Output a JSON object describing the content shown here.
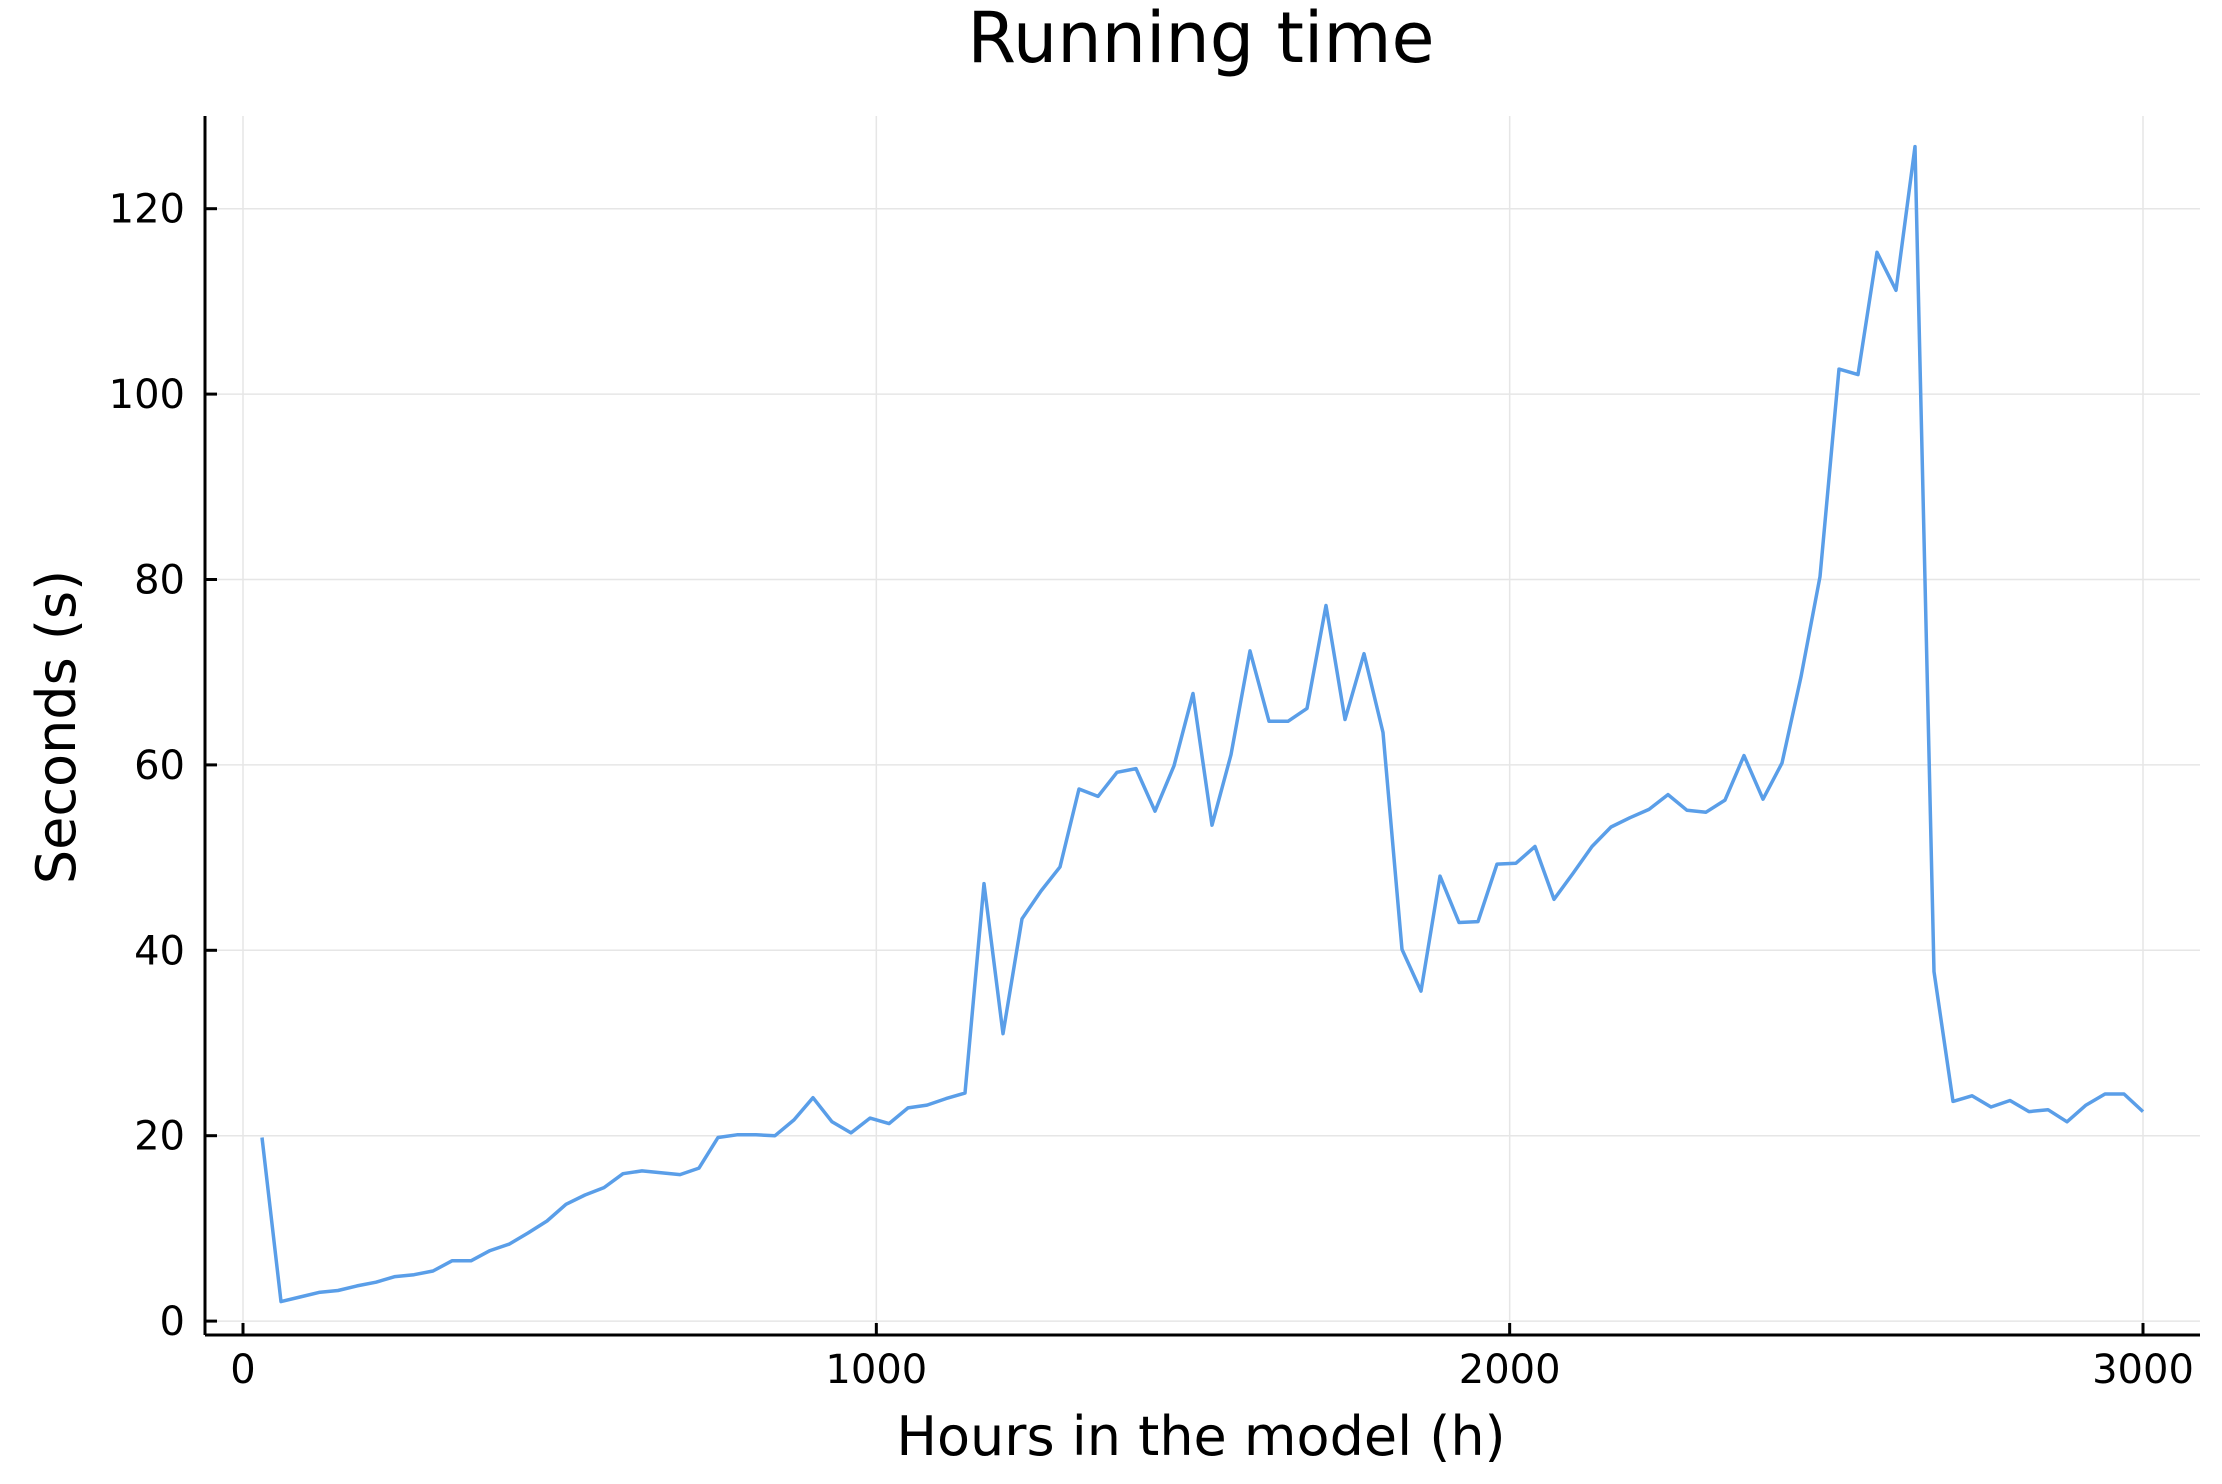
{
  "chart_data": {
    "type": "line",
    "title": "Running time",
    "xlabel": "Hours in the model (h)",
    "ylabel": "Seconds (s)",
    "xlim": [
      -60,
      3090
    ],
    "ylim": [
      -1.5,
      130
    ],
    "xticks": [
      0,
      1000,
      2000,
      3000
    ],
    "yticks": [
      0,
      20,
      40,
      60,
      80,
      100,
      120
    ],
    "grid": true,
    "legend": "none",
    "series": [
      {
        "color": "#5a9ee8",
        "x": [
          30,
          60,
          90,
          120,
          150,
          180,
          210,
          240,
          270,
          300,
          330,
          360,
          390,
          420,
          450,
          480,
          510,
          540,
          570,
          600,
          630,
          660,
          690,
          720,
          750,
          780,
          810,
          840,
          870,
          900,
          930,
          960,
          990,
          1020,
          1050,
          1080,
          1110,
          1140,
          1170,
          1200,
          1230,
          1260,
          1290,
          1320,
          1350,
          1380,
          1410,
          1440,
          1470,
          1500,
          1530,
          1560,
          1590,
          1620,
          1650,
          1680,
          1710,
          1740,
          1770,
          1800,
          1830,
          1860,
          1890,
          1920,
          1950,
          1980,
          2010,
          2040,
          2070,
          2100,
          2130,
          2160,
          2190,
          2220,
          2250,
          2280,
          2310,
          2340,
          2370,
          2400,
          2430,
          2460,
          2490,
          2520,
          2550,
          2580,
          2610,
          2640,
          2670,
          2700,
          2730,
          2760,
          2790,
          2820,
          2850,
          2880,
          2910,
          2940,
          2970,
          3000
        ],
        "y": [
          19.8,
          2.1,
          2.6,
          3.1,
          3.3,
          3.8,
          4.2,
          4.8,
          5.0,
          5.4,
          6.5,
          6.5,
          7.6,
          8.3,
          9.5,
          10.8,
          12.6,
          13.6,
          14.4,
          15.9,
          16.2,
          16.0,
          15.8,
          16.5,
          19.8,
          20.1,
          20.1,
          20.0,
          21.7,
          24.1,
          21.5,
          20.3,
          21.9,
          21.3,
          23.0,
          23.3,
          24.0,
          24.6,
          47.2,
          31.0,
          43.4,
          46.4,
          49.0,
          57.4,
          56.6,
          59.2,
          59.6,
          55.0,
          59.9,
          67.7,
          53.5,
          61.1,
          72.3,
          64.7,
          64.7,
          66.1,
          77.2,
          64.9,
          72.0,
          63.5,
          40.1,
          35.6,
          48.0,
          43.0,
          43.1,
          49.3,
          49.4,
          51.2,
          45.5,
          48.3,
          51.2,
          53.3,
          54.3,
          55.2,
          56.8,
          55.1,
          54.9,
          56.2,
          61.0,
          56.3,
          60.2,
          69.5,
          80.3,
          102.7,
          102.1,
          115.3,
          111.2,
          126.7,
          37.7,
          23.7,
          24.3,
          23.1,
          23.8,
          22.6,
          22.8,
          21.5,
          23.3,
          24.5,
          24.5,
          22.6
        ]
      }
    ]
  }
}
